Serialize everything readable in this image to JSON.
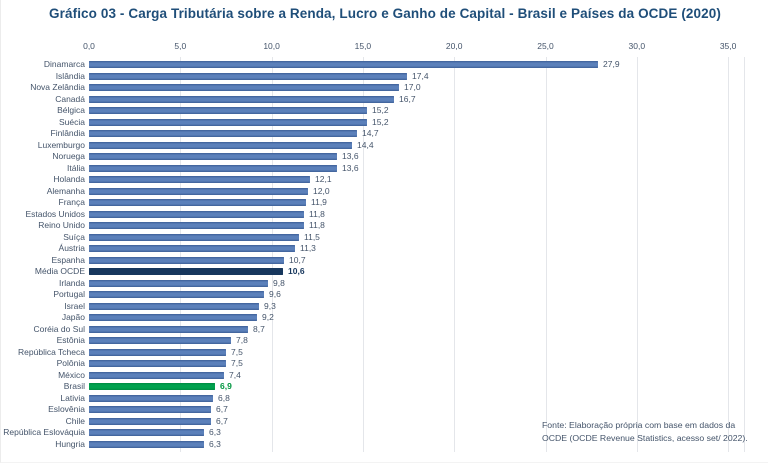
{
  "source_note": {
    "line1": "Fonte:  Elaboração própria com base em dados da",
    "line2": "OCDE (OCDE Revenue Statistics, acesso set/ 2022)."
  },
  "chart_data": {
    "type": "bar",
    "orientation": "horizontal",
    "title": "Gráfico 03 - Carga Tributária sobre a Renda, Lucro e Ganho de Capital - Brasil e Países da OCDE (2020)",
    "xlim": [
      0,
      35
    ],
    "x_tick_values": [
      0,
      5,
      10,
      15,
      20,
      25,
      30,
      35
    ],
    "x_tick_labels": [
      "0,0",
      "5,0",
      "10,0",
      "15,0",
      "20,0",
      "25,0",
      "30,0",
      "35,0"
    ],
    "axis_position": "top",
    "grid": true,
    "legend": false,
    "bars": [
      {
        "label": "Dinamarca",
        "value": 27.9,
        "display": "27,9",
        "style": "default"
      },
      {
        "label": "Islândia",
        "value": 17.4,
        "display": "17,4",
        "style": "default"
      },
      {
        "label": "Nova Zelândia",
        "value": 17.0,
        "display": "17,0",
        "style": "default"
      },
      {
        "label": "Canadá",
        "value": 16.7,
        "display": "16,7",
        "style": "default"
      },
      {
        "label": "Bélgica",
        "value": 15.2,
        "display": "15,2",
        "style": "default"
      },
      {
        "label": "Suécia",
        "value": 15.2,
        "display": "15,2",
        "style": "default"
      },
      {
        "label": "Finlândia",
        "value": 14.7,
        "display": "14,7",
        "style": "default"
      },
      {
        "label": "Luxemburgo",
        "value": 14.4,
        "display": "14,4",
        "style": "default"
      },
      {
        "label": "Noruega",
        "value": 13.6,
        "display": "13,6",
        "style": "default"
      },
      {
        "label": "Itália",
        "value": 13.6,
        "display": "13,6",
        "style": "default"
      },
      {
        "label": "Holanda",
        "value": 12.1,
        "display": "12,1",
        "style": "default"
      },
      {
        "label": "Alemanha",
        "value": 12.0,
        "display": "12,0",
        "style": "default"
      },
      {
        "label": "França",
        "value": 11.9,
        "display": "11,9",
        "style": "default"
      },
      {
        "label": "Estados Unidos",
        "value": 11.8,
        "display": "11,8",
        "style": "default"
      },
      {
        "label": "Reino Unido",
        "value": 11.8,
        "display": "11,8",
        "style": "default"
      },
      {
        "label": "Suíça",
        "value": 11.5,
        "display": "11,5",
        "style": "default"
      },
      {
        "label": "Áustria",
        "value": 11.3,
        "display": "11,3",
        "style": "default"
      },
      {
        "label": "Espanha",
        "value": 10.7,
        "display": "10,7",
        "style": "default"
      },
      {
        "label": "Média OCDE",
        "value": 10.6,
        "display": "10,6",
        "style": "ocde-average"
      },
      {
        "label": "Irlanda",
        "value": 9.8,
        "display": "9,8",
        "style": "default"
      },
      {
        "label": "Portugal",
        "value": 9.6,
        "display": "9,6",
        "style": "default"
      },
      {
        "label": "Israel",
        "value": 9.3,
        "display": "9,3",
        "style": "default"
      },
      {
        "label": "Japão",
        "value": 9.2,
        "display": "9,2",
        "style": "default"
      },
      {
        "label": "Coréia do Sul",
        "value": 8.7,
        "display": "8,7",
        "style": "default"
      },
      {
        "label": "Estônia",
        "value": 7.8,
        "display": "7,8",
        "style": "default"
      },
      {
        "label": "República Tcheca",
        "value": 7.5,
        "display": "7,5",
        "style": "default"
      },
      {
        "label": "Polônia",
        "value": 7.5,
        "display": "7,5",
        "style": "default"
      },
      {
        "label": "México",
        "value": 7.4,
        "display": "7,4",
        "style": "default"
      },
      {
        "label": "Brasil",
        "value": 6.9,
        "display": "6,9",
        "style": "brasil"
      },
      {
        "label": "Lativia",
        "value": 6.8,
        "display": "6,8",
        "style": "default"
      },
      {
        "label": "Eslovênia",
        "value": 6.7,
        "display": "6,7",
        "style": "default"
      },
      {
        "label": "Chile",
        "value": 6.7,
        "display": "6,7",
        "style": "default"
      },
      {
        "label": "República Eslováquia",
        "value": 6.3,
        "display": "6,3",
        "style": "default"
      },
      {
        "label": "Hungria",
        "value": 6.3,
        "display": "6,3",
        "style": "default"
      }
    ],
    "colors": {
      "default_bar": "#4e74ac",
      "default_bar_edge": "#3d5f97",
      "ocde_average_bar": "#17375d",
      "brasil_bar": "#00a14e",
      "brasil_bar_edge": "#008b42",
      "title_text": "#1f4e79",
      "axis_text": "#44546a",
      "gridline": "#e4e6ea"
    }
  }
}
